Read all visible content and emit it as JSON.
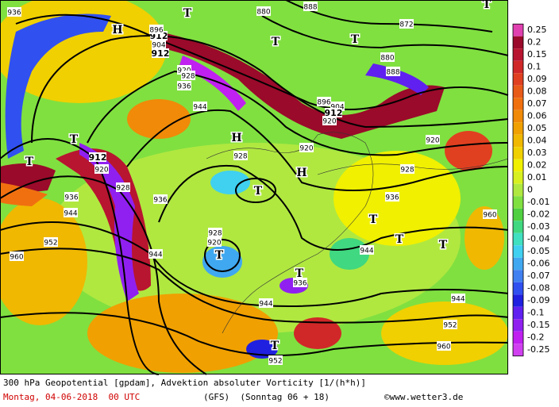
{
  "map": {
    "contour_labels": [
      "936",
      "912",
      "896",
      "904",
      "912",
      "920",
      "928",
      "936",
      "944",
      "880",
      "888",
      "872",
      "880",
      "888",
      "896",
      "904",
      "912",
      "920",
      "920",
      "928",
      "912",
      "920",
      "928",
      "936",
      "944",
      "952",
      "936",
      "944",
      "928",
      "920",
      "936",
      "944",
      "944",
      "936",
      "944",
      "952",
      "960",
      "952",
      "960",
      "960",
      "920",
      "928"
    ],
    "pressure_markers": [
      "H",
      "T",
      "T",
      "T",
      "T",
      "T",
      "H",
      "H",
      "T",
      "T",
      "T",
      "T",
      "T",
      "T",
      "T",
      "T"
    ],
    "colorbar": [
      {
        "value": 0.25,
        "color": "#e040b0"
      },
      {
        "value": 0.2,
        "color": "#9a0a2a"
      },
      {
        "value": 0.15,
        "color": "#b81530"
      },
      {
        "value": 0.1,
        "color": "#d02828"
      },
      {
        "value": 0.09,
        "color": "#e04020"
      },
      {
        "value": 0.08,
        "color": "#e85a18"
      },
      {
        "value": 0.07,
        "color": "#f07010"
      },
      {
        "value": 0.06,
        "color": "#f08a08"
      },
      {
        "value": 0.05,
        "color": "#f0a000"
      },
      {
        "value": 0.04,
        "color": "#f0b800"
      },
      {
        "value": 0.03,
        "color": "#f0d000"
      },
      {
        "value": 0.02,
        "color": "#f0f000"
      },
      {
        "value": 0.01,
        "color": "#d8f020"
      },
      {
        "value": 0,
        "color": "#b0e840"
      },
      {
        "value": -0.01,
        "color": "#80e040"
      },
      {
        "value": -0.02,
        "color": "#50d040"
      },
      {
        "value": -0.03,
        "color": "#40d880"
      },
      {
        "value": -0.04,
        "color": "#40e0c0"
      },
      {
        "value": -0.05,
        "color": "#40d0f0"
      },
      {
        "value": -0.06,
        "color": "#40a8f0"
      },
      {
        "value": -0.07,
        "color": "#4080f0"
      },
      {
        "value": -0.08,
        "color": "#3050f0"
      },
      {
        "value": -0.09,
        "color": "#2020e0"
      },
      {
        "value": -0.1,
        "color": "#6020f0"
      },
      {
        "value": -0.15,
        "color": "#9020f0"
      },
      {
        "value": -0.2,
        "color": "#c020f0"
      },
      {
        "value": -0.25,
        "color": "#d040f0"
      }
    ],
    "footer": {
      "title": "300 hPa Geopotential [gpdam], Advektion absoluter Vorticity [1/(h*h)]",
      "date": "Montag, 04-06-2018  00 UTC",
      "model": "(GFS)  (Sonntag 06 + 18)",
      "credit": "©www.wetter3.de"
    }
  }
}
